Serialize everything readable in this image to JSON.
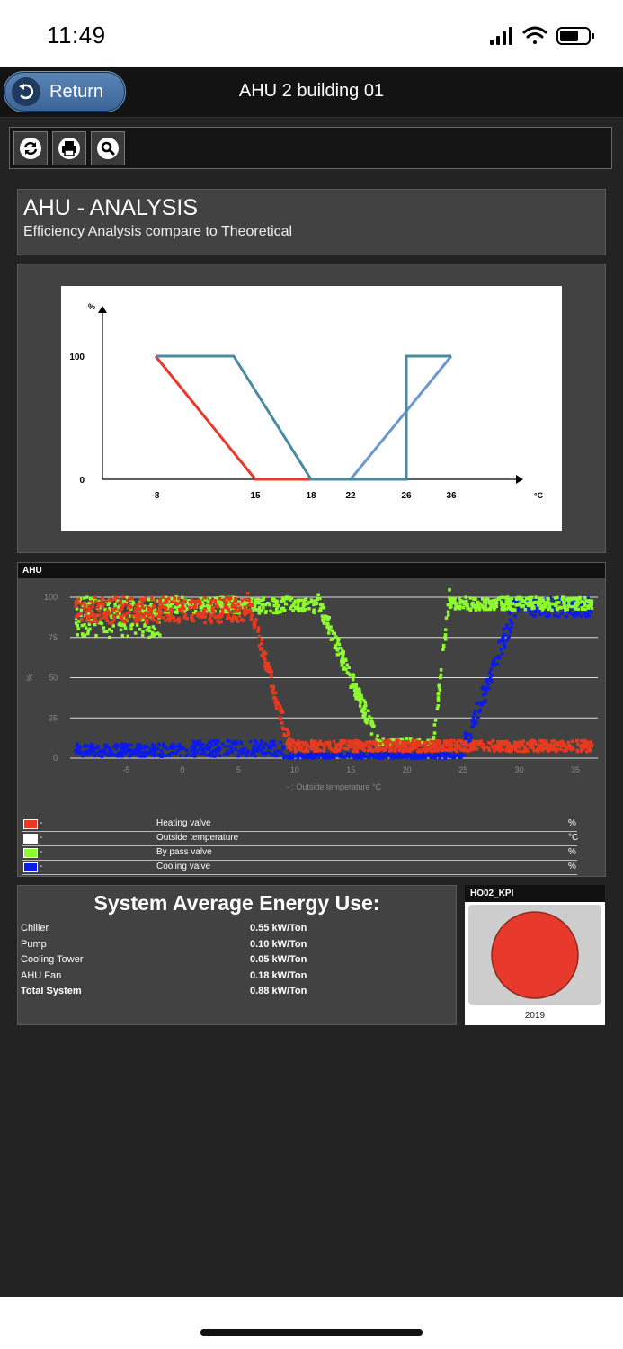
{
  "status": {
    "time": "11:49"
  },
  "nav": {
    "return_label": "Return",
    "title": "AHU 2 building 01"
  },
  "toolbar": {
    "refresh_icon": "refresh-icon",
    "print_icon": "print-icon",
    "search_icon": "search-icon"
  },
  "analysis": {
    "title": "AHU - ANALYSIS",
    "subtitle": "Efficiency Analysis compare to Theoretical"
  },
  "chart_data": [
    {
      "type": "line",
      "title": "",
      "ylabel": "%",
      "xlabel": "°C",
      "x_ticks": [
        -8,
        15,
        18,
        22,
        26,
        36
      ],
      "y_ticks": [
        0,
        100
      ],
      "series": [
        {
          "name": "Heating valve",
          "color": "#e8392c",
          "points": [
            [
              -8,
              100
            ],
            [
              15,
              0
            ],
            [
              18,
              0
            ]
          ]
        },
        {
          "name": "Cooling valve",
          "color": "#6d97cf",
          "points": [
            [
              22,
              0
            ],
            [
              36,
              100
            ]
          ]
        },
        {
          "name": "By pass valve",
          "color": "#4a8aa2",
          "points": [
            [
              -8,
              100
            ],
            [
              10,
              100
            ],
            [
              18,
              0
            ],
            [
              26,
              0
            ],
            [
              26,
              100
            ],
            [
              36,
              100
            ]
          ]
        }
      ]
    },
    {
      "type": "scatter",
      "title": "AHU",
      "ylabel": "%",
      "xlabel": "- : Outside temperature °C",
      "xlim": [
        -10,
        37
      ],
      "ylim": [
        0,
        100
      ],
      "x_ticks": [
        -5,
        0,
        5,
        10,
        15,
        20,
        25,
        30,
        35
      ],
      "y_ticks": [
        0,
        25,
        50,
        75,
        100
      ],
      "series": [
        {
          "name": "Heating valve",
          "unit": "%",
          "color": "#e83a1f"
        },
        {
          "name": "Outside temperature",
          "unit": "°C",
          "color": "#ffffff"
        },
        {
          "name": "By pass valve",
          "unit": "%",
          "color": "#8cfc2f"
        },
        {
          "name": "Cooling valve",
          "unit": "%",
          "color": "#0a1bea"
        }
      ]
    }
  ],
  "ahu_chart": {
    "header": "AHU",
    "legend": [
      {
        "dash": "-",
        "label": "Heating valve",
        "unit": "%",
        "color": "#e83a1f"
      },
      {
        "dash": "-",
        "label": "Outside temperature",
        "unit": "°C",
        "color": "#ffffff"
      },
      {
        "dash": "-",
        "label": "By pass valve",
        "unit": "%",
        "color": "#8cfc2f"
      },
      {
        "dash": "-",
        "label": "Cooling valve",
        "unit": "%",
        "color": "#0a1bea"
      }
    ]
  },
  "energy": {
    "title": "System Average Energy Use:",
    "rows": [
      {
        "name": "Chiller",
        "value": "0.55 kW/Ton"
      },
      {
        "name": "Pump",
        "value": "0.10 kW/Ton"
      },
      {
        "name": "Cooling Tower",
        "value": "0.05 kW/Ton"
      },
      {
        "name": "AHU Fan",
        "value": "0.18 kW/Ton"
      },
      {
        "name": "Total System",
        "value": "0.88 kW/Ton"
      }
    ]
  },
  "kpi": {
    "title": "HO02_KPI",
    "year": "2019",
    "status_color": "#e83a2c"
  }
}
